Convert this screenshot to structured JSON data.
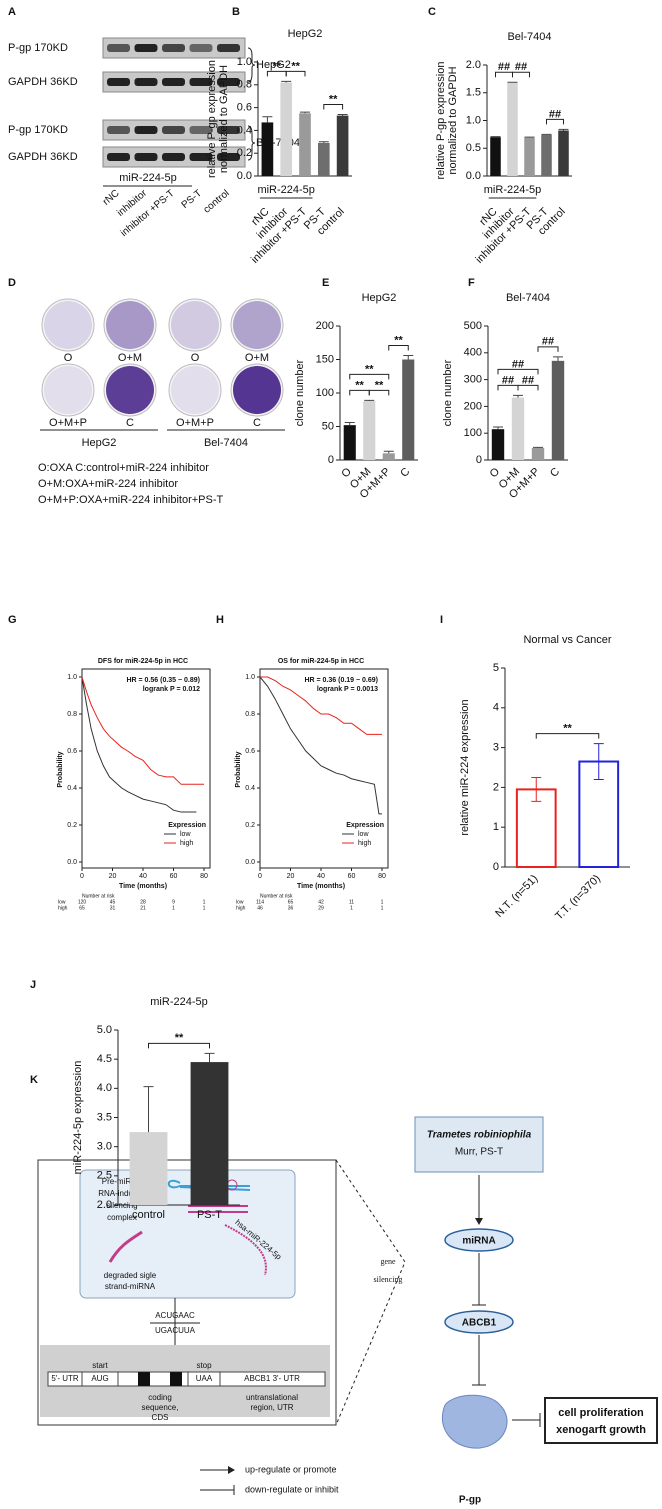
{
  "panel_labels": [
    "A",
    "B",
    "C",
    "D",
    "E",
    "F",
    "G",
    "H",
    "I",
    "J",
    "K"
  ],
  "blot": {
    "rows": [
      "P-gp 170KD",
      "GAPDH 36KD",
      "P-gp 170KD",
      "GAPDH 36KD"
    ],
    "cell_lines": [
      "HepG2",
      "Bel-7404"
    ],
    "group_label": "miR-224-5p",
    "lanes": [
      "rNC",
      "inhibitor",
      "inhibitor +PS-T",
      "PS-T",
      "control"
    ]
  },
  "colony": {
    "plates": [
      "O",
      "O+M",
      "O+M+P",
      "C"
    ],
    "cell_lines": [
      "HepG2",
      "Bel-7404"
    ],
    "legend": [
      "O:OXA C:control+miR-224 inhibitor",
      "O+M:OXA+miR-224 inhibitor",
      "O+M+P:OXA+miR-224 inhibitor+PS-T"
    ]
  },
  "chart_data": [
    {
      "type": "bar",
      "title": "HepG2",
      "y_label": [
        "relative P-gp expression",
        "normalized to GAPDH"
      ],
      "group_label": "miR-224-5p",
      "categories": [
        "rNC",
        "inhibitor",
        "inhibitor +PS-T",
        "PS-T",
        "control"
      ],
      "values": [
        0.47,
        0.82,
        0.55,
        0.29,
        0.53
      ],
      "errors": [
        0.05,
        0.01,
        0.01,
        0.01,
        0.01
      ],
      "colors": [
        "#111111",
        "#d4d4d4",
        "#9a9a9a",
        "#6e6e6e",
        "#3a3a3a"
      ],
      "ylim": [
        0,
        1.0
      ],
      "yticks": [
        {
          "value": 0,
          "label": "0.0"
        },
        0.2,
        0.4,
        0.6,
        0.8,
        {
          "value": 1,
          "label": "1.0"
        }
      ],
      "brackets": [
        {
          "label": "**",
          "between": [
            0,
            1
          ]
        },
        {
          "label": "**",
          "between": [
            1,
            2
          ]
        },
        {
          "label": "**",
          "between": [
            3,
            4
          ]
        }
      ]
    },
    {
      "type": "bar",
      "title": "Bel-7404",
      "y_label": [
        "relative P-gp expression",
        "normalized to GAPDH"
      ],
      "group_label": "miR-224-5p",
      "categories": [
        "rNC",
        "inhibitor",
        "inhibitor +PS-T",
        "PS-T",
        "control"
      ],
      "values": [
        0.7,
        1.68,
        0.69,
        0.74,
        0.82
      ],
      "errors": [
        0.01,
        0.01,
        0.01,
        0.01,
        0.02
      ],
      "colors": [
        "#111111",
        "#d4d4d4",
        "#9a9a9a",
        "#6e6e6e",
        "#3a3a3a"
      ],
      "ylim": [
        0,
        2.0
      ],
      "yticks": [
        {
          "value": 0,
          "label": "0.0"
        },
        0.5,
        {
          "value": 1,
          "label": "1.0"
        },
        1.5,
        {
          "value": 2,
          "label": "2.0"
        }
      ],
      "brackets": [
        {
          "label": "##",
          "between": [
            0,
            1
          ]
        },
        {
          "label": "##",
          "between": [
            1,
            2
          ]
        },
        {
          "label": "##",
          "between": [
            3,
            4
          ]
        }
      ]
    },
    {
      "type": "bar",
      "title": "HepG2",
      "y_label": [
        "clone number"
      ],
      "categories": [
        "O",
        "O+M",
        "O+M+P",
        "C"
      ],
      "values": [
        52,
        88,
        10,
        150
      ],
      "errors": [
        4,
        1,
        3,
        6
      ],
      "colors": [
        "#111111",
        "#d4d4d4",
        "#9a9a9a",
        "#5e5e5e"
      ],
      "ylim": [
        0,
        200
      ],
      "yticks": [
        0,
        50,
        100,
        150,
        200
      ],
      "brackets": [
        {
          "label": "**",
          "between": [
            0,
            1
          ]
        },
        {
          "label": "**",
          "between": [
            1,
            2
          ]
        },
        {
          "label": "**",
          "between": [
            0,
            2
          ]
        },
        {
          "label": "**",
          "between": [
            2,
            3
          ]
        }
      ]
    },
    {
      "type": "bar",
      "title": "Bel-7404",
      "y_label": [
        "clone number"
      ],
      "categories": [
        "O",
        "O+M",
        "O+M+P",
        "C"
      ],
      "values": [
        115,
        233,
        45,
        370
      ],
      "errors": [
        8,
        8,
        2,
        15
      ],
      "colors": [
        "#111111",
        "#d4d4d4",
        "#9a9a9a",
        "#5e5e5e"
      ],
      "ylim": [
        0,
        500
      ],
      "yticks": [
        0,
        100,
        200,
        300,
        400,
        500
      ],
      "brackets": [
        {
          "label": "##",
          "between": [
            0,
            1
          ]
        },
        {
          "label": "##",
          "between": [
            1,
            2
          ]
        },
        {
          "label": "##",
          "between": [
            0,
            2
          ]
        },
        {
          "label": "##",
          "between": [
            2,
            3
          ]
        }
      ]
    },
    {
      "type": "line",
      "title": "DFS for miR-224-5p in HCC",
      "x_label": "Time (months)",
      "y_label": "Probability",
      "annotations": [
        "HR = 0.56 (0.35 − 0.89)",
        "logrank P = 0.012"
      ],
      "legend_title": "Expression",
      "legend": "lower right",
      "xlim": [
        0,
        80
      ],
      "ylim": [
        0,
        1.0
      ],
      "xticks": [
        0,
        20,
        40,
        60,
        80
      ],
      "yticks": [
        {
          "value": 0,
          "label": "0.0"
        },
        0.2,
        0.4,
        0.6,
        0.8,
        {
          "value": 1,
          "label": "1.0"
        }
      ],
      "series": [
        {
          "name": "low",
          "color": "#333333",
          "x": [
            0,
            3,
            6,
            10,
            14,
            18,
            22,
            26,
            30,
            35,
            40,
            45,
            50,
            55,
            60,
            65,
            70,
            75
          ],
          "values": [
            1,
            0.85,
            0.72,
            0.6,
            0.52,
            0.46,
            0.43,
            0.4,
            0.38,
            0.36,
            0.34,
            0.33,
            0.32,
            0.31,
            0.28,
            0.27,
            0.27,
            0.27
          ]
        },
        {
          "name": "high",
          "color": "#e8231d",
          "x": [
            0,
            3,
            6,
            10,
            14,
            18,
            22,
            26,
            30,
            35,
            40,
            45,
            50,
            55,
            60,
            65,
            70,
            75,
            80
          ],
          "values": [
            1,
            0.92,
            0.85,
            0.78,
            0.72,
            0.68,
            0.65,
            0.62,
            0.6,
            0.57,
            0.55,
            0.5,
            0.47,
            0.46,
            0.46,
            0.42,
            0.42,
            0.42,
            0.42
          ]
        }
      ],
      "risk_table": {
        "title": "Number at risk",
        "rows": [
          [
            120,
            45,
            28,
            9,
            1
          ],
          [
            65,
            31,
            21,
            1,
            1
          ]
        ]
      }
    },
    {
      "type": "line",
      "title": "OS for miR-224-5p in HCC",
      "x_label": "Time (months)",
      "y_label": "Probability",
      "annotations": [
        "HR = 0.36 (0.19 − 0.69)",
        "logrank P = 0.0013"
      ],
      "legend_title": "Expression",
      "legend": "lower right",
      "xlim": [
        0,
        80
      ],
      "ylim": [
        0,
        1.0
      ],
      "xticks": [
        0,
        20,
        40,
        60,
        80
      ],
      "yticks": [
        {
          "value": 0,
          "label": "0.0"
        },
        0.2,
        0.4,
        0.6,
        0.8,
        {
          "value": 1,
          "label": "1.0"
        }
      ],
      "series": [
        {
          "name": "low",
          "color": "#333333",
          "x": [
            0,
            5,
            10,
            15,
            20,
            25,
            30,
            35,
            40,
            45,
            50,
            55,
            60,
            65,
            70,
            75,
            78,
            80
          ],
          "values": [
            1,
            0.95,
            0.88,
            0.8,
            0.72,
            0.66,
            0.6,
            0.56,
            0.52,
            0.5,
            0.48,
            0.47,
            0.45,
            0.44,
            0.43,
            0.42,
            0.26,
            0.26
          ]
        },
        {
          "name": "high",
          "color": "#e8231d",
          "x": [
            0,
            5,
            10,
            15,
            20,
            25,
            30,
            35,
            40,
            45,
            50,
            55,
            60,
            65,
            70,
            75,
            80
          ],
          "values": [
            1,
            1,
            0.98,
            0.95,
            0.93,
            0.9,
            0.87,
            0.83,
            0.8,
            0.8,
            0.78,
            0.75,
            0.75,
            0.72,
            0.69,
            0.69,
            0.69
          ]
        }
      ],
      "risk_table": {
        "title": "Number at risk",
        "rows": [
          [
            114,
            65,
            42,
            11,
            1
          ],
          [
            46,
            36,
            29,
            1,
            1
          ]
        ]
      }
    },
    {
      "type": "bar",
      "title": "Normal vs Cancer",
      "y_label": [
        "relative miR-224 expression"
      ],
      "outline": true,
      "categories": [
        "N.T. (n=51)",
        "T.T. (n=370)"
      ],
      "values": [
        1.95,
        2.65
      ],
      "errors": [
        0.3,
        0.45
      ],
      "colors": [
        "#e8231d",
        "#2222dd"
      ],
      "ylim": [
        0,
        5
      ],
      "yticks": [
        0,
        1,
        2,
        3,
        4,
        5
      ],
      "brackets": [
        {
          "label": "**",
          "between": [
            0,
            1
          ]
        }
      ]
    },
    {
      "type": "bar",
      "title": "miR-224-5p",
      "y_label": [
        "miR-224-5p expression"
      ],
      "categories": [
        "control",
        "PS-T"
      ],
      "values": [
        3.25,
        4.45
      ],
      "errors": [
        0.78,
        0.15
      ],
      "colors": [
        "#d4d4d4",
        "#333333"
      ],
      "ylim": [
        2.0,
        5.0
      ],
      "yticks": [
        {
          "value": 2,
          "label": "2.0"
        },
        2.5,
        {
          "value": 3,
          "label": "3.0"
        },
        3.5,
        {
          "value": 4,
          "label": "4.0"
        },
        4.5,
        {
          "value": 5,
          "label": "5.0"
        }
      ],
      "brackets": [
        {
          "label": "**",
          "between": [
            0,
            1
          ]
        }
      ]
    }
  ],
  "diagram": {
    "drug": [
      "Trametes robiniophila",
      "Murr, PS-T"
    ],
    "mirna": "miRNA",
    "gene": "ABCB1",
    "protein": "P-gp",
    "outcome": [
      "cell proliferation",
      "xenogarft growth"
    ],
    "silencing": [
      "gene",
      "silencing"
    ],
    "inset": {
      "pre_mirna": [
        "Pre-miRNA",
        "RNA-induced",
        "silencing",
        "complex"
      ],
      "degraded": [
        "degraded sigle",
        "strand-miRNA"
      ],
      "mature": "hsa-miR-224-5p",
      "pairing": [
        "ACUGAAC",
        "UGACUUA"
      ],
      "start": "start",
      "stop": "stop",
      "segments": [
        "5'- UTR",
        "AUG",
        "UAA",
        "ABCB1 3'- UTR"
      ],
      "cds": [
        "coding",
        "sequence,",
        "CDS"
      ],
      "utr": [
        "untranslational",
        "region, UTR"
      ]
    },
    "legend": [
      "up-regulate or promote",
      "down-regulate or inhibit"
    ]
  }
}
